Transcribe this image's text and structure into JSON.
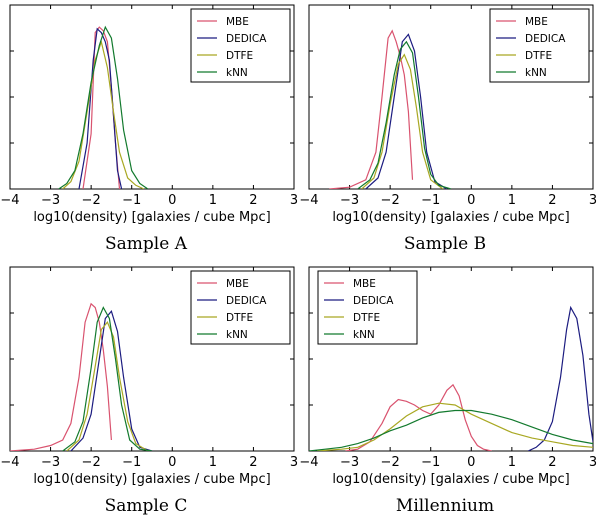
{
  "figure": {
    "series_colors": {
      "MBE": "#d9536f",
      "DEDICA": "#1c1c80",
      "DTFE": "#a9a823",
      "kNN": "#137a2e"
    }
  },
  "chart_data": [
    {
      "type": "line",
      "caption": "Sample A",
      "xlabel": "log10(density) [galaxies / cube Mpc]",
      "ylabel": "",
      "xlim": [
        -4,
        3
      ],
      "ylim": [
        0,
        1
      ],
      "xticks": [
        "−4",
        "−3",
        "−2",
        "−1",
        "0",
        "1",
        "2",
        "3"
      ],
      "legend": {
        "position": "top-right",
        "entries": [
          "MBE",
          "DEDICA",
          "DTFE",
          "kNN"
        ]
      },
      "series": [
        {
          "name": "MBE",
          "x": [
            -2.2,
            -2.0,
            -1.9,
            -1.8,
            -1.7,
            -1.6,
            -1.5,
            -1.4,
            -1.3
          ],
          "y": [
            0,
            0.3,
            0.85,
            0.88,
            0.86,
            0.8,
            0.55,
            0.25,
            0
          ]
        },
        {
          "name": "DEDICA",
          "x": [
            -2.3,
            -2.1,
            -1.95,
            -1.85,
            -1.75,
            -1.65,
            -1.55,
            -1.45,
            -1.35,
            -1.25
          ],
          "y": [
            0,
            0.25,
            0.7,
            0.87,
            0.85,
            0.8,
            0.7,
            0.4,
            0.1,
            0
          ]
        },
        {
          "name": "DTFE",
          "x": [
            -2.7,
            -2.5,
            -2.3,
            -2.1,
            -1.9,
            -1.75,
            -1.6,
            -1.45,
            -1.3,
            -1.1,
            -0.9,
            -0.7
          ],
          "y": [
            0,
            0.04,
            0.15,
            0.42,
            0.7,
            0.8,
            0.66,
            0.42,
            0.2,
            0.06,
            0.02,
            0
          ]
        },
        {
          "name": "kNN",
          "x": [
            -2.8,
            -2.6,
            -2.4,
            -2.2,
            -2.0,
            -1.8,
            -1.65,
            -1.5,
            -1.35,
            -1.2,
            -1.0,
            -0.8,
            -0.6
          ],
          "y": [
            0,
            0.03,
            0.1,
            0.3,
            0.58,
            0.78,
            0.88,
            0.82,
            0.6,
            0.32,
            0.1,
            0.03,
            0
          ]
        }
      ]
    },
    {
      "type": "line",
      "caption": "Sample B",
      "xlabel": "log10(density) [galaxies / cube Mpc]",
      "ylabel": "",
      "xlim": [
        -4,
        3
      ],
      "ylim": [
        0,
        1
      ],
      "xticks": [
        "−4",
        "−3",
        "−2",
        "−1",
        "0",
        "1",
        "2",
        "3"
      ],
      "legend": {
        "position": "top-right",
        "entries": [
          "MBE",
          "DEDICA",
          "DTFE",
          "kNN"
        ]
      },
      "series": [
        {
          "name": "MBE",
          "x": [
            -3.5,
            -3.0,
            -2.6,
            -2.35,
            -2.2,
            -2.05,
            -1.95,
            -1.85,
            -1.75,
            -1.65,
            -1.55,
            -1.45
          ],
          "y": [
            0,
            0.01,
            0.05,
            0.2,
            0.5,
            0.82,
            0.86,
            0.8,
            0.72,
            0.62,
            0.42,
            0.05
          ]
        },
        {
          "name": "DEDICA",
          "x": [
            -2.6,
            -2.3,
            -2.1,
            -1.9,
            -1.7,
            -1.55,
            -1.4,
            -1.25,
            -1.1,
            -0.9,
            -0.6
          ],
          "y": [
            0,
            0.06,
            0.2,
            0.5,
            0.8,
            0.84,
            0.75,
            0.5,
            0.2,
            0.04,
            0
          ]
        },
        {
          "name": "DTFE",
          "x": [
            -2.7,
            -2.4,
            -2.2,
            -2.0,
            -1.8,
            -1.65,
            -1.5,
            -1.35,
            -1.2,
            -1.0,
            -0.7
          ],
          "y": [
            0,
            0.06,
            0.2,
            0.46,
            0.68,
            0.73,
            0.65,
            0.44,
            0.2,
            0.05,
            0
          ]
        },
        {
          "name": "kNN",
          "x": [
            -2.8,
            -2.5,
            -2.3,
            -2.1,
            -1.9,
            -1.75,
            -1.6,
            -1.45,
            -1.3,
            -1.15,
            -1.0,
            -0.8,
            -0.5
          ],
          "y": [
            0,
            0.05,
            0.14,
            0.36,
            0.62,
            0.76,
            0.8,
            0.74,
            0.5,
            0.22,
            0.08,
            0.02,
            0
          ]
        }
      ]
    },
    {
      "type": "line",
      "caption": "Sample C",
      "xlabel": "log10(density) [galaxies / cube Mpc]",
      "ylabel": "",
      "xlim": [
        -4,
        3
      ],
      "ylim": [
        0,
        1
      ],
      "xticks": [
        "−4",
        "−3",
        "−2",
        "−1",
        "0",
        "1",
        "2",
        "3"
      ],
      "legend": {
        "position": "top-right",
        "entries": [
          "MBE",
          "DEDICA",
          "DTFE",
          "kNN"
        ]
      },
      "series": [
        {
          "name": "MBE",
          "x": [
            -4.0,
            -3.4,
            -3.0,
            -2.7,
            -2.5,
            -2.3,
            -2.15,
            -2.0,
            -1.9,
            -1.8,
            -1.7,
            -1.6,
            -1.5
          ],
          "y": [
            0,
            0.01,
            0.03,
            0.06,
            0.15,
            0.4,
            0.7,
            0.8,
            0.78,
            0.7,
            0.55,
            0.35,
            0.06
          ]
        },
        {
          "name": "DEDICA",
          "x": [
            -2.5,
            -2.2,
            -2.0,
            -1.8,
            -1.65,
            -1.5,
            -1.35,
            -1.2,
            -1.0,
            -0.8,
            -0.5
          ],
          "y": [
            0,
            0.07,
            0.2,
            0.5,
            0.72,
            0.76,
            0.65,
            0.4,
            0.12,
            0.02,
            0
          ]
        },
        {
          "name": "DTFE",
          "x": [
            -2.6,
            -2.3,
            -2.1,
            -1.9,
            -1.75,
            -1.6,
            -1.45,
            -1.3,
            -1.1,
            -0.9,
            -0.6
          ],
          "y": [
            0,
            0.06,
            0.2,
            0.46,
            0.66,
            0.7,
            0.62,
            0.4,
            0.16,
            0.04,
            0
          ]
        },
        {
          "name": "kNN",
          "x": [
            -2.7,
            -2.4,
            -2.2,
            -2.0,
            -1.85,
            -1.7,
            -1.55,
            -1.4,
            -1.25,
            -1.05,
            -0.8,
            -0.5
          ],
          "y": [
            0,
            0.05,
            0.16,
            0.45,
            0.7,
            0.78,
            0.72,
            0.5,
            0.25,
            0.06,
            0.01,
            0
          ]
        }
      ]
    },
    {
      "type": "line",
      "caption": "Millennium",
      "xlabel": "log10(density) [galaxies / cube Mpc]",
      "ylabel": "",
      "xlim": [
        -4,
        3
      ],
      "ylim": [
        0,
        1
      ],
      "xticks": [
        "−4",
        "−3",
        "−2",
        "−1",
        "0",
        "1",
        "2",
        "3"
      ],
      "legend": {
        "position": "top-left",
        "entries": [
          "MBE",
          "DEDICA",
          "DTFE",
          "kNN"
        ]
      },
      "series": [
        {
          "name": "MBE",
          "x": [
            -3.1,
            -2.8,
            -2.5,
            -2.2,
            -2.0,
            -1.8,
            -1.6,
            -1.4,
            -1.2,
            -1.0,
            -0.8,
            -0.6,
            -0.45,
            -0.3,
            -0.15,
            0.0,
            0.15,
            0.3,
            0.5
          ],
          "y": [
            0,
            0.01,
            0.05,
            0.15,
            0.24,
            0.28,
            0.27,
            0.25,
            0.22,
            0.2,
            0.25,
            0.33,
            0.36,
            0.3,
            0.17,
            0.08,
            0.03,
            0.01,
            0
          ]
        },
        {
          "name": "DEDICA",
          "x": [
            1.4,
            1.6,
            1.8,
            2.0,
            2.2,
            2.35,
            2.45,
            2.6,
            2.75,
            2.9,
            3.0
          ],
          "y": [
            0,
            0.02,
            0.06,
            0.16,
            0.4,
            0.66,
            0.78,
            0.72,
            0.52,
            0.2,
            0.05
          ]
        },
        {
          "name": "DTFE",
          "x": [
            -3.8,
            -3.2,
            -2.8,
            -2.4,
            -2.0,
            -1.6,
            -1.2,
            -0.8,
            -0.4,
            0.0,
            0.5,
            1.0,
            1.5,
            2.0,
            2.5,
            3.0
          ],
          "y": [
            0,
            0.01,
            0.02,
            0.06,
            0.12,
            0.19,
            0.24,
            0.26,
            0.25,
            0.2,
            0.15,
            0.1,
            0.07,
            0.05,
            0.03,
            0.02
          ]
        },
        {
          "name": "kNN",
          "x": [
            -4.0,
            -3.6,
            -3.2,
            -2.8,
            -2.4,
            -2.0,
            -1.6,
            -1.2,
            -0.8,
            -0.4,
            0.0,
            0.5,
            1.0,
            1.5,
            2.0,
            2.5,
            3.0
          ],
          "y": [
            0,
            0.01,
            0.02,
            0.04,
            0.07,
            0.11,
            0.14,
            0.18,
            0.21,
            0.22,
            0.22,
            0.2,
            0.17,
            0.13,
            0.09,
            0.06,
            0.04
          ]
        }
      ]
    }
  ]
}
